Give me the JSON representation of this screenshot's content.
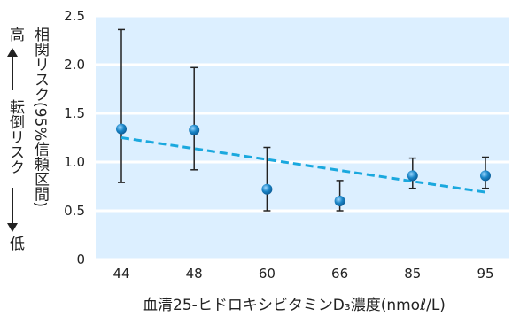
{
  "chart_data": {
    "type": "scatter",
    "xlabel": "血清25-ヒドロキシビタミンD₃濃度(nmoℓ/L)",
    "ylabel": "相関リスク(95%信頼区間)",
    "side_label": {
      "top": "高",
      "middle": "転倒リスク",
      "bottom": "低"
    },
    "categories": [
      "44",
      "48",
      "60",
      "66",
      "85",
      "95"
    ],
    "values": [
      1.34,
      1.33,
      0.72,
      0.6,
      0.86,
      0.86
    ],
    "ci_low": [
      0.79,
      0.92,
      0.5,
      0.5,
      0.73,
      0.73
    ],
    "ci_high": [
      2.36,
      1.97,
      1.15,
      0.81,
      1.04,
      1.05
    ],
    "trend": {
      "start": 1.25,
      "end": 0.69
    },
    "yticks": [
      "0",
      "0.5",
      "1.0",
      "1.5",
      "2.0",
      "2.5"
    ],
    "ylim": [
      0,
      2.5
    ],
    "grid": true,
    "colors": {
      "band": "#dcefff",
      "point": "#1a86c8",
      "trend": "#1aa8de",
      "errorbar": "#222222"
    }
  }
}
